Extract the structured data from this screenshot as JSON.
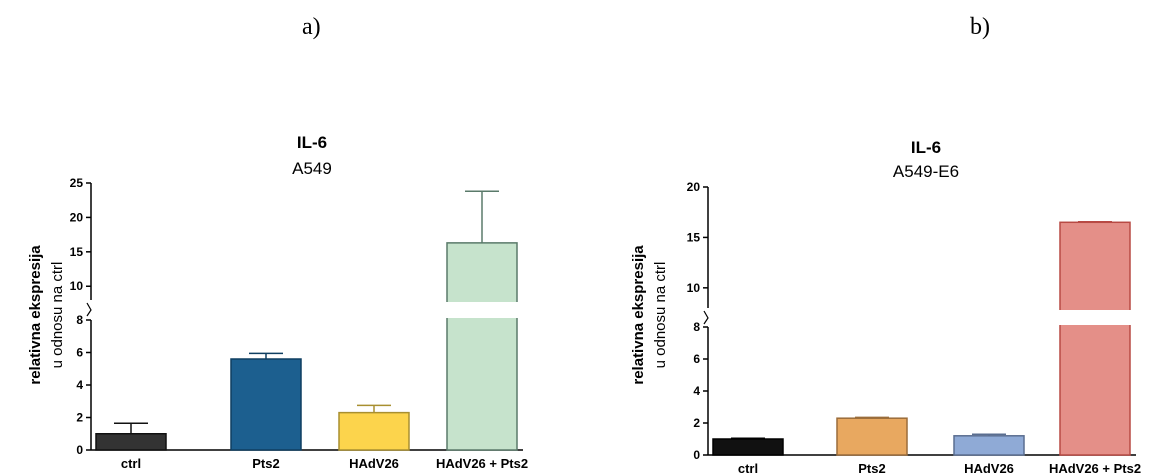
{
  "panels": {
    "a": "a)",
    "b": "b)"
  },
  "chart_data": [
    {
      "type": "bar",
      "title": "IL-6",
      "subtitle": "A549",
      "ylabel": "relativna ekspresija",
      "ylabel2": "u odnosu na ctrl",
      "categories": [
        "ctrl",
        "Pts2",
        "HAdV26",
        "HAdV26 + Pts2"
      ],
      "values": [
        1.0,
        5.6,
        2.3,
        16.3
      ],
      "errors": [
        0.65,
        0.35,
        0.45,
        7.5
      ],
      "fill_colors": [
        "#333333",
        "#1c5f8f",
        "#fcd44c",
        "#c6e3cc"
      ],
      "stroke_colors": [
        "#111111",
        "#0f3f61",
        "#a88f30",
        "#5a7a6a"
      ],
      "axis_break": {
        "lower_range": [
          0,
          8
        ],
        "upper_range": [
          8,
          25
        ]
      },
      "lower_ticks": [
        0,
        2,
        4,
        6,
        8
      ],
      "upper_ticks": [
        10,
        15,
        20,
        25
      ],
      "grid": false
    },
    {
      "type": "bar",
      "title": "IL-6",
      "subtitle": "A549-E6",
      "ylabel": "relativna ekspresija",
      "ylabel2": "u odnosu na ctrl",
      "categories": [
        "ctrl",
        "Pts2",
        "HAdV26",
        "HAdV26 + Pts2"
      ],
      "values": [
        1.0,
        2.3,
        1.2,
        16.5
      ],
      "errors": [
        0.05,
        0.05,
        0.1,
        0.05
      ],
      "fill_colors": [
        "#111111",
        "#e8a860",
        "#8faad6",
        "#e48f88"
      ],
      "stroke_colors": [
        "#000000",
        "#9a6c3a",
        "#5a6e90",
        "#b84a44"
      ],
      "axis_break": {
        "lower_range": [
          0,
          8
        ],
        "upper_range": [
          8,
          20
        ]
      },
      "lower_ticks": [
        0,
        2,
        4,
        6,
        8
      ],
      "upper_ticks": [
        10,
        15,
        20
      ],
      "grid": false
    }
  ]
}
